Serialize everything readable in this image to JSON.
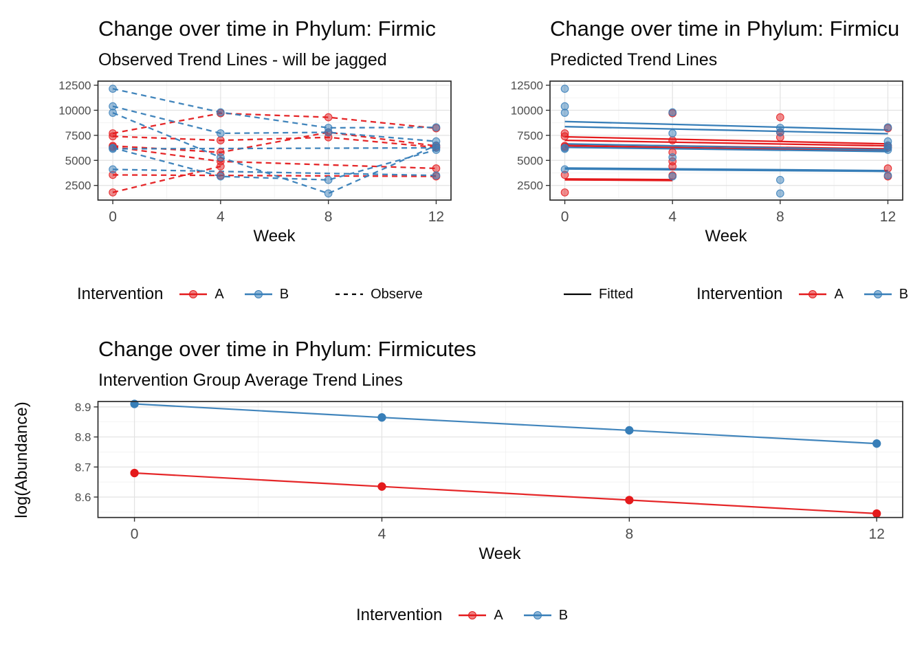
{
  "palette": {
    "group_a": "#E41A1C",
    "group_b": "#377EB8",
    "grid_major": "#E2E2E2",
    "grid_minor": "#F2F2F2",
    "panel_border": "#2B2B2B",
    "axis_text": "#4D4D4D",
    "key_line": "#000000"
  },
  "legends": {
    "observed": {
      "title": "Intervention",
      "item_a": "A",
      "item_b": "B",
      "line_label": "Observe",
      "line_style": "dashed"
    },
    "predicted": {
      "line_label": "Fitted",
      "line_style": "solid",
      "title": "Intervention",
      "item_a": "A",
      "item_b": "B"
    },
    "average": {
      "title": "Intervention",
      "item_a": "A",
      "item_b": "B"
    }
  },
  "chart_data": [
    {
      "id": "observed",
      "type": "line",
      "title": "Change over time in Phylum: Firmic",
      "subtitle": "Observed Trend Lines - will be jagged",
      "xlabel": "Week",
      "ylabel": "",
      "grid": true,
      "legend_position": "bottom",
      "line_style": "dashed",
      "x_ticks": [
        0,
        4,
        8,
        12
      ],
      "x_minor": [
        2,
        6,
        10
      ],
      "y_ticks": [
        2500,
        5000,
        7500,
        10000,
        12500
      ],
      "y_minor": [
        1250,
        3750,
        6250,
        8750,
        11250
      ],
      "xlim": [
        -0.55,
        12.55
      ],
      "ylim": [
        1040,
        12910
      ],
      "series": [
        {
          "subject": "A1",
          "group": "A",
          "x": [
            0,
            4,
            8,
            12
          ],
          "y": [
            7700,
            9700,
            9300,
            8200
          ]
        },
        {
          "subject": "A2",
          "group": "A",
          "x": [
            0,
            4,
            8,
            12
          ],
          "y": [
            7400,
            7000,
            7300,
            6300
          ]
        },
        {
          "subject": "A3",
          "group": "A",
          "x": [
            0,
            4,
            8,
            12
          ],
          "y": [
            6450,
            5800,
            7800,
            6450
          ]
        },
        {
          "subject": "A4",
          "group": "A",
          "x": [
            0,
            4,
            12
          ],
          "y": [
            6350,
            4900,
            4200
          ]
        },
        {
          "subject": "A5",
          "group": "A",
          "x": [
            0,
            4,
            12
          ],
          "y": [
            3550,
            3500,
            3400
          ]
        },
        {
          "subject": "A6",
          "group": "A",
          "x": [
            0,
            4
          ],
          "y": [
            1800,
            4400
          ]
        },
        {
          "subject": "B1",
          "group": "B",
          "x": [
            0,
            4,
            8,
            12
          ],
          "y": [
            12150,
            9800,
            8250,
            8300
          ]
        },
        {
          "subject": "B2",
          "group": "B",
          "x": [
            0,
            4,
            8,
            12
          ],
          "y": [
            10400,
            7700,
            7800,
            6900
          ]
        },
        {
          "subject": "B3",
          "group": "B",
          "x": [
            0,
            4,
            8,
            12
          ],
          "y": [
            9750,
            5300,
            1700,
            6500
          ]
        },
        {
          "subject": "B4",
          "group": "B",
          "x": [
            0,
            4,
            8,
            12
          ],
          "y": [
            6250,
            3400,
            3050,
            6050
          ]
        },
        {
          "subject": "B5",
          "group": "B",
          "x": [
            0,
            12
          ],
          "y": [
            6150,
            6250
          ]
        },
        {
          "subject": "B6",
          "group": "B",
          "x": [
            0,
            12
          ],
          "y": [
            4100,
            3500
          ]
        }
      ]
    },
    {
      "id": "predicted",
      "type": "scatter+fitted",
      "title": "Change over time in Phylum: Firmicu",
      "subtitle": "Predicted Trend Lines",
      "xlabel": "Week",
      "ylabel": "",
      "grid": true,
      "legend_position": "bottom",
      "line_style": "solid",
      "x_ticks": [
        0,
        4,
        8,
        12
      ],
      "x_minor": [
        2,
        6,
        10
      ],
      "y_ticks": [
        2500,
        5000,
        7500,
        10000,
        12500
      ],
      "y_minor": [
        1250,
        3750,
        6250,
        8750,
        11250
      ],
      "xlim": [
        -0.55,
        12.55
      ],
      "ylim": [
        1040,
        12910
      ],
      "series": [
        {
          "subject": "A1",
          "group": "A",
          "x": [
            0,
            4,
            8,
            12
          ],
          "y": [
            7700,
            9700,
            9300,
            8200
          ]
        },
        {
          "subject": "A2",
          "group": "A",
          "x": [
            0,
            4,
            8,
            12
          ],
          "y": [
            7400,
            7000,
            7300,
            6300
          ]
        },
        {
          "subject": "A3",
          "group": "A",
          "x": [
            0,
            4,
            8,
            12
          ],
          "y": [
            6450,
            5800,
            7800,
            6450
          ]
        },
        {
          "subject": "A4",
          "group": "A",
          "x": [
            0,
            4,
            12
          ],
          "y": [
            6350,
            4900,
            4200
          ]
        },
        {
          "subject": "A5",
          "group": "A",
          "x": [
            0,
            4,
            12
          ],
          "y": [
            3550,
            3500,
            3400
          ]
        },
        {
          "subject": "A6",
          "group": "A",
          "x": [
            0,
            4
          ],
          "y": [
            1800,
            4400
          ]
        },
        {
          "subject": "B1",
          "group": "B",
          "x": [
            0,
            4,
            8,
            12
          ],
          "y": [
            12150,
            9800,
            8250,
            8300
          ]
        },
        {
          "subject": "B2",
          "group": "B",
          "x": [
            0,
            4,
            8,
            12
          ],
          "y": [
            10400,
            7700,
            7800,
            6900
          ]
        },
        {
          "subject": "B3",
          "group": "B",
          "x": [
            0,
            4,
            8,
            12
          ],
          "y": [
            9750,
            5300,
            1700,
            6500
          ]
        },
        {
          "subject": "B4",
          "group": "B",
          "x": [
            0,
            4,
            8,
            12
          ],
          "y": [
            6250,
            3400,
            3050,
            6050
          ]
        },
        {
          "subject": "B5",
          "group": "B",
          "x": [
            0,
            12
          ],
          "y": [
            6150,
            6250
          ]
        },
        {
          "subject": "B6",
          "group": "B",
          "x": [
            0,
            12
          ],
          "y": [
            4100,
            3500
          ]
        }
      ],
      "fitted": [
        {
          "subject": "A1",
          "group": "A",
          "x": [
            0,
            12
          ],
          "y": [
            7350,
            6650
          ]
        },
        {
          "subject": "A2",
          "group": "A",
          "x": [
            0,
            12
          ],
          "y": [
            7000,
            6450
          ]
        },
        {
          "subject": "A3",
          "group": "A",
          "x": [
            0,
            12
          ],
          "y": [
            6600,
            6150
          ]
        },
        {
          "subject": "A4",
          "group": "A",
          "x": [
            0,
            12
          ],
          "y": [
            6450,
            5950
          ]
        },
        {
          "subject": "A5",
          "group": "A",
          "x": [
            0,
            4
          ],
          "y": [
            3150,
            3080
          ]
        },
        {
          "subject": "A6",
          "group": "A",
          "x": [
            0,
            4
          ],
          "y": [
            3060,
            2990
          ]
        },
        {
          "subject": "B1",
          "group": "B",
          "x": [
            0,
            12
          ],
          "y": [
            8880,
            8030
          ]
        },
        {
          "subject": "B2",
          "group": "B",
          "x": [
            0,
            12
          ],
          "y": [
            8370,
            7660
          ]
        },
        {
          "subject": "B3",
          "group": "B",
          "x": [
            0,
            12
          ],
          "y": [
            6650,
            6050
          ]
        },
        {
          "subject": "B4",
          "group": "B",
          "x": [
            0,
            12
          ],
          "y": [
            4240,
            3980
          ]
        },
        {
          "subject": "B5",
          "group": "B",
          "x": [
            0,
            12
          ],
          "y": [
            6300,
            5880
          ]
        },
        {
          "subject": "B6",
          "group": "B",
          "x": [
            0,
            12
          ],
          "y": [
            4150,
            3900
          ]
        }
      ]
    },
    {
      "id": "average",
      "type": "line",
      "title": "Change over time in Phylum: Firmicutes",
      "subtitle": "Intervention Group Average Trend Lines",
      "xlabel": "Week",
      "ylabel": "log(Abundance)",
      "grid": true,
      "legend_position": "bottom",
      "line_style": "solid",
      "x_ticks": [
        0,
        4,
        8,
        12
      ],
      "x_minor": [
        2,
        6,
        10
      ],
      "y_ticks": [
        8.6,
        8.7,
        8.8,
        8.9
      ],
      "y_minor": [
        8.55,
        8.65,
        8.75,
        8.85
      ],
      "xlim": [
        -0.59,
        12.42
      ],
      "ylim": [
        8.532,
        8.918
      ],
      "series": [
        {
          "subject": "A",
          "group": "A",
          "x": [
            0,
            4,
            8,
            12
          ],
          "y": [
            8.68,
            8.635,
            8.59,
            8.545
          ]
        },
        {
          "subject": "B",
          "group": "B",
          "x": [
            0,
            4,
            8,
            12
          ],
          "y": [
            8.91,
            8.865,
            8.822,
            8.778
          ]
        }
      ]
    }
  ]
}
